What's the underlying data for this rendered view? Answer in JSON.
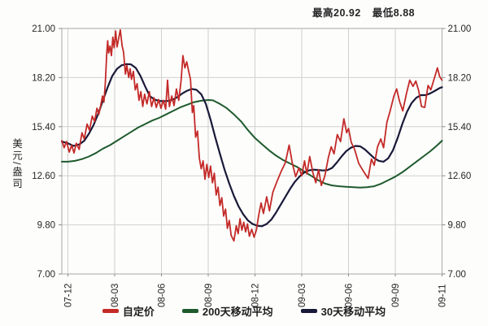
{
  "header": {
    "high_label": "最高20.92",
    "low_label": "最低8.88"
  },
  "y_axis": {
    "title": "美元/盎司"
  },
  "legend": [
    {
      "label": "自定价",
      "color": "#c32a28"
    },
    {
      "label": "200天移动平均",
      "color": "#1e5a2c"
    },
    {
      "label": "30天移动平均",
      "color": "#191938"
    }
  ],
  "colors": {
    "grid": "#d0d0cd",
    "border": "#b5b5b2",
    "tick": "#8a8a88",
    "background": "#fdfdfc",
    "text": "#262626"
  },
  "chart_data": {
    "type": "line",
    "title": "",
    "ylabel": "美元/盎司",
    "xlabel": "",
    "grid": true,
    "legend_position": "bottom",
    "ylim": [
      7.0,
      21.0
    ],
    "high": 20.92,
    "low": 8.88,
    "y_tick_labels": [
      "21.00",
      "18.20",
      "15.40",
      "12.60",
      "9.80",
      "7.00"
    ],
    "y_tick_values": [
      21.0,
      18.2,
      15.4,
      12.6,
      9.8,
      7.0
    ],
    "x_tick_labels": [
      "07-12",
      "08-03",
      "08-06",
      "08-09",
      "08-12",
      "09-03",
      "09-06",
      "09-09",
      "09-11"
    ],
    "series": [
      {
        "name": "自定价",
        "color": "#c32a28",
        "width": 1.8,
        "points": [
          [
            -0.13,
            14.6
          ],
          [
            -0.08,
            14.2
          ],
          [
            -0.03,
            14.55
          ],
          [
            0.03,
            13.95
          ],
          [
            0.08,
            14.35
          ],
          [
            0.13,
            13.9
          ],
          [
            0.18,
            14.45
          ],
          [
            0.24,
            14.1
          ],
          [
            0.3,
            15.05
          ],
          [
            0.35,
            14.7
          ],
          [
            0.41,
            15.55
          ],
          [
            0.46,
            15.2
          ],
          [
            0.52,
            16.0
          ],
          [
            0.57,
            15.7
          ],
          [
            0.62,
            16.45
          ],
          [
            0.66,
            16.1
          ],
          [
            0.7,
            16.6
          ],
          [
            0.74,
            17.15
          ],
          [
            0.77,
            16.8
          ],
          [
            0.8,
            17.9
          ],
          [
            0.83,
            19.55
          ],
          [
            0.85,
            20.3
          ],
          [
            0.87,
            19.6
          ],
          [
            0.9,
            20.0
          ],
          [
            0.93,
            19.45
          ],
          [
            0.96,
            20.5
          ],
          [
            0.99,
            19.9
          ],
          [
            1.02,
            20.85
          ],
          [
            1.05,
            19.95
          ],
          [
            1.08,
            20.35
          ],
          [
            1.12,
            20.92
          ],
          [
            1.16,
            20.0
          ],
          [
            1.19,
            19.65
          ],
          [
            1.23,
            18.4
          ],
          [
            1.26,
            18.9
          ],
          [
            1.3,
            18.2
          ],
          [
            1.33,
            18.7
          ],
          [
            1.36,
            18.1
          ],
          [
            1.4,
            18.55
          ],
          [
            1.44,
            17.5
          ],
          [
            1.48,
            17.85
          ],
          [
            1.52,
            16.9
          ],
          [
            1.56,
            17.4
          ],
          [
            1.6,
            16.55
          ],
          [
            1.64,
            17.25
          ],
          [
            1.69,
            16.7
          ],
          [
            1.74,
            17.4
          ],
          [
            1.79,
            16.55
          ],
          [
            1.84,
            17.05
          ],
          [
            1.89,
            16.5
          ],
          [
            1.94,
            16.95
          ],
          [
            1.99,
            16.45
          ],
          [
            2.04,
            16.9
          ],
          [
            2.09,
            16.4
          ],
          [
            2.13,
            18.05
          ],
          [
            2.17,
            16.55
          ],
          [
            2.22,
            17.15
          ],
          [
            2.27,
            16.6
          ],
          [
            2.32,
            17.55
          ],
          [
            2.37,
            16.9
          ],
          [
            2.42,
            18.05
          ],
          [
            2.46,
            19.45
          ],
          [
            2.5,
            18.75
          ],
          [
            2.54,
            19.1
          ],
          [
            2.58,
            18.6
          ],
          [
            2.62,
            18.1
          ],
          [
            2.66,
            16.2
          ],
          [
            2.69,
            16.6
          ],
          [
            2.73,
            14.8
          ],
          [
            2.77,
            15.15
          ],
          [
            2.81,
            13.6
          ],
          [
            2.85,
            13.0
          ],
          [
            2.89,
            13.45
          ],
          [
            2.93,
            12.4
          ],
          [
            2.97,
            13.25
          ],
          [
            3.01,
            12.5
          ],
          [
            3.05,
            13.15
          ],
          [
            3.09,
            12.2
          ],
          [
            3.13,
            12.75
          ],
          [
            3.17,
            11.5
          ],
          [
            3.21,
            11.95
          ],
          [
            3.25,
            10.9
          ],
          [
            3.29,
            11.35
          ],
          [
            3.33,
            10.3
          ],
          [
            3.37,
            10.7
          ],
          [
            3.41,
            9.6
          ],
          [
            3.45,
            10.05
          ],
          [
            3.49,
            9.2
          ],
          [
            3.55,
            8.88
          ],
          [
            3.6,
            9.75
          ],
          [
            3.64,
            9.3
          ],
          [
            3.68,
            10.15
          ],
          [
            3.72,
            9.5
          ],
          [
            3.76,
            9.95
          ],
          [
            3.8,
            9.4
          ],
          [
            3.84,
            9.85
          ],
          [
            3.88,
            9.15
          ],
          [
            3.93,
            9.55
          ],
          [
            3.98,
            9.1
          ],
          [
            4.03,
            9.5
          ],
          [
            4.08,
            10.35
          ],
          [
            4.13,
            11.05
          ],
          [
            4.18,
            10.45
          ],
          [
            4.25,
            11.4
          ],
          [
            4.31,
            10.6
          ],
          [
            4.38,
            11.65
          ],
          [
            4.46,
            12.2
          ],
          [
            4.56,
            12.85
          ],
          [
            4.65,
            13.35
          ],
          [
            4.73,
            14.35
          ],
          [
            4.8,
            13.3
          ],
          [
            4.87,
            12.55
          ],
          [
            4.94,
            13.05
          ],
          [
            5.0,
            12.6
          ],
          [
            5.06,
            13.45
          ],
          [
            5.11,
            12.7
          ],
          [
            5.17,
            13.7
          ],
          [
            5.24,
            12.75
          ],
          [
            5.3,
            12.2
          ],
          [
            5.36,
            12.95
          ],
          [
            5.42,
            12.05
          ],
          [
            5.49,
            12.55
          ],
          [
            5.57,
            13.65
          ],
          [
            5.63,
            14.25
          ],
          [
            5.69,
            13.85
          ],
          [
            5.76,
            14.95
          ],
          [
            5.83,
            14.55
          ],
          [
            5.9,
            15.85
          ],
          [
            5.96,
            15.05
          ],
          [
            6.0,
            15.3
          ],
          [
            6.06,
            14.5
          ],
          [
            6.13,
            14.1
          ],
          [
            6.22,
            13.3
          ],
          [
            6.32,
            12.85
          ],
          [
            6.42,
            12.45
          ],
          [
            6.49,
            13.55
          ],
          [
            6.55,
            13.2
          ],
          [
            6.62,
            14.25
          ],
          [
            6.69,
            14.7
          ],
          [
            6.75,
            14.2
          ],
          [
            6.82,
            15.65
          ],
          [
            6.89,
            16.3
          ],
          [
            6.97,
            17.15
          ],
          [
            7.03,
            17.55
          ],
          [
            7.09,
            16.85
          ],
          [
            7.16,
            16.3
          ],
          [
            7.24,
            17.3
          ],
          [
            7.31,
            18.05
          ],
          [
            7.38,
            17.7
          ],
          [
            7.44,
            18.0
          ],
          [
            7.5,
            17.45
          ],
          [
            7.56,
            16.55
          ],
          [
            7.63,
            16.5
          ],
          [
            7.7,
            17.75
          ],
          [
            7.76,
            17.5
          ],
          [
            7.84,
            18.2
          ],
          [
            7.9,
            18.75
          ],
          [
            7.95,
            18.25
          ],
          [
            8.0,
            18.05
          ]
        ]
      },
      {
        "name": "200天移动平均",
        "color": "#1e5a2c",
        "width": 2.0,
        "points": [
          [
            -0.13,
            13.4
          ],
          [
            0.0,
            13.4
          ],
          [
            0.15,
            13.45
          ],
          [
            0.3,
            13.55
          ],
          [
            0.45,
            13.7
          ],
          [
            0.6,
            13.9
          ],
          [
            0.75,
            14.15
          ],
          [
            0.9,
            14.35
          ],
          [
            1.05,
            14.6
          ],
          [
            1.2,
            14.85
          ],
          [
            1.35,
            15.1
          ],
          [
            1.5,
            15.35
          ],
          [
            1.65,
            15.55
          ],
          [
            1.8,
            15.75
          ],
          [
            1.95,
            15.9
          ],
          [
            2.1,
            16.1
          ],
          [
            2.25,
            16.3
          ],
          [
            2.4,
            16.5
          ],
          [
            2.55,
            16.65
          ],
          [
            2.7,
            16.8
          ],
          [
            2.85,
            16.88
          ],
          [
            3.0,
            16.92
          ],
          [
            3.1,
            16.9
          ],
          [
            3.25,
            16.7
          ],
          [
            3.4,
            16.45
          ],
          [
            3.55,
            16.1
          ],
          [
            3.7,
            15.7
          ],
          [
            3.85,
            15.2
          ],
          [
            4.0,
            14.75
          ],
          [
            4.15,
            14.4
          ],
          [
            4.3,
            14.05
          ],
          [
            4.45,
            13.75
          ],
          [
            4.6,
            13.5
          ],
          [
            4.75,
            13.3
          ],
          [
            4.9,
            13.1
          ],
          [
            5.05,
            12.85
          ],
          [
            5.2,
            12.6
          ],
          [
            5.35,
            12.35
          ],
          [
            5.5,
            12.15
          ],
          [
            5.65,
            12.05
          ],
          [
            5.8,
            12.0
          ],
          [
            5.95,
            11.97
          ],
          [
            6.1,
            11.95
          ],
          [
            6.25,
            11.93
          ],
          [
            6.4,
            11.95
          ],
          [
            6.55,
            12.0
          ],
          [
            6.7,
            12.15
          ],
          [
            6.85,
            12.35
          ],
          [
            7.0,
            12.55
          ],
          [
            7.15,
            12.8
          ],
          [
            7.3,
            13.1
          ],
          [
            7.45,
            13.4
          ],
          [
            7.6,
            13.7
          ],
          [
            7.75,
            14.0
          ],
          [
            7.9,
            14.35
          ],
          [
            8.0,
            14.6
          ]
        ]
      },
      {
        "name": "30天移动平均",
        "color": "#191938",
        "width": 2.2,
        "points": [
          [
            -0.13,
            14.55
          ],
          [
            0.0,
            14.45
          ],
          [
            0.12,
            14.3
          ],
          [
            0.25,
            14.4
          ],
          [
            0.35,
            14.6
          ],
          [
            0.45,
            15.0
          ],
          [
            0.55,
            15.5
          ],
          [
            0.65,
            16.15
          ],
          [
            0.75,
            16.9
          ],
          [
            0.85,
            17.65
          ],
          [
            0.95,
            18.3
          ],
          [
            1.05,
            18.7
          ],
          [
            1.15,
            18.9
          ],
          [
            1.25,
            18.97
          ],
          [
            1.35,
            18.95
          ],
          [
            1.45,
            18.75
          ],
          [
            1.55,
            18.3
          ],
          [
            1.65,
            17.7
          ],
          [
            1.75,
            17.15
          ],
          [
            1.85,
            16.95
          ],
          [
            1.95,
            16.87
          ],
          [
            2.05,
            16.85
          ],
          [
            2.15,
            16.87
          ],
          [
            2.25,
            16.95
          ],
          [
            2.35,
            17.1
          ],
          [
            2.45,
            17.3
          ],
          [
            2.55,
            17.45
          ],
          [
            2.65,
            17.55
          ],
          [
            2.75,
            17.5
          ],
          [
            2.85,
            17.25
          ],
          [
            2.95,
            16.7
          ],
          [
            3.05,
            15.8
          ],
          [
            3.15,
            14.8
          ],
          [
            3.25,
            13.85
          ],
          [
            3.35,
            12.95
          ],
          [
            3.45,
            12.15
          ],
          [
            3.55,
            11.45
          ],
          [
            3.65,
            10.85
          ],
          [
            3.75,
            10.4
          ],
          [
            3.85,
            10.05
          ],
          [
            3.95,
            9.85
          ],
          [
            4.05,
            9.75
          ],
          [
            4.15,
            9.72
          ],
          [
            4.25,
            9.85
          ],
          [
            4.35,
            10.1
          ],
          [
            4.45,
            10.5
          ],
          [
            4.55,
            10.95
          ],
          [
            4.65,
            11.4
          ],
          [
            4.75,
            11.85
          ],
          [
            4.85,
            12.25
          ],
          [
            4.95,
            12.55
          ],
          [
            5.05,
            12.78
          ],
          [
            5.15,
            12.9
          ],
          [
            5.25,
            12.95
          ],
          [
            5.35,
            12.93
          ],
          [
            5.45,
            12.9
          ],
          [
            5.55,
            12.92
          ],
          [
            5.65,
            13.05
          ],
          [
            5.75,
            13.35
          ],
          [
            5.85,
            13.7
          ],
          [
            5.95,
            14.0
          ],
          [
            6.05,
            14.2
          ],
          [
            6.15,
            14.3
          ],
          [
            6.25,
            14.28
          ],
          [
            6.35,
            14.1
          ],
          [
            6.45,
            13.85
          ],
          [
            6.55,
            13.6
          ],
          [
            6.65,
            13.45
          ],
          [
            6.75,
            13.4
          ],
          [
            6.85,
            13.6
          ],
          [
            6.95,
            14.05
          ],
          [
            7.05,
            14.75
          ],
          [
            7.15,
            15.55
          ],
          [
            7.25,
            16.25
          ],
          [
            7.35,
            16.75
          ],
          [
            7.45,
            17.05
          ],
          [
            7.55,
            17.2
          ],
          [
            7.65,
            17.2
          ],
          [
            7.75,
            17.3
          ],
          [
            7.85,
            17.45
          ],
          [
            7.95,
            17.6
          ],
          [
            8.0,
            17.65
          ]
        ]
      }
    ]
  }
}
